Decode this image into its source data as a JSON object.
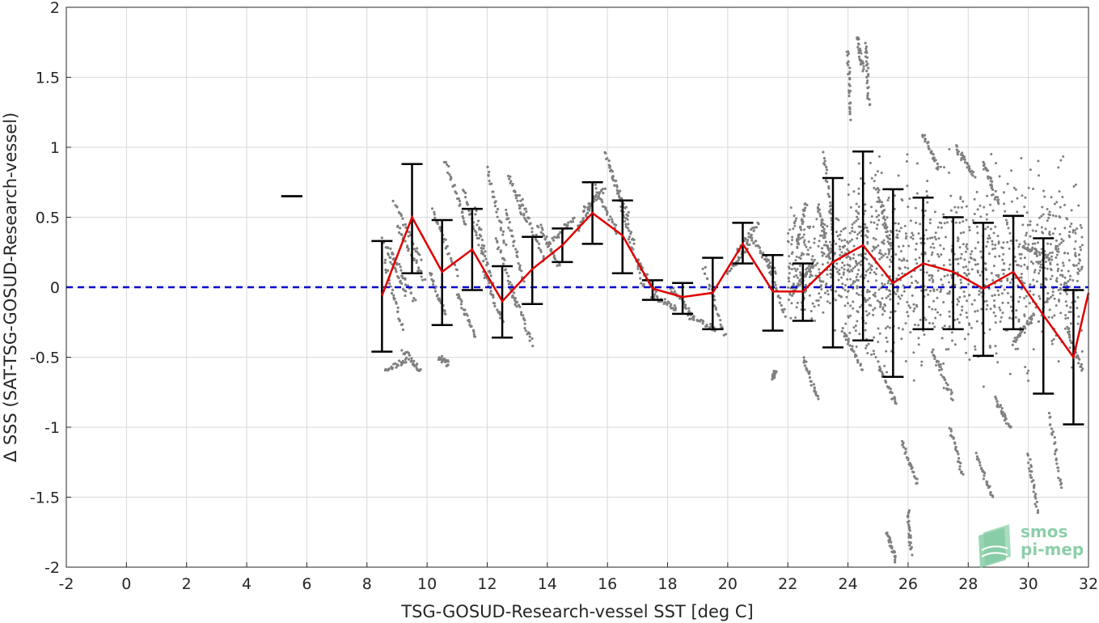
{
  "chart_data": {
    "type": "scatter",
    "xlabel": "TSG-GOSUD-Research-vessel SST [deg C]",
    "ylabel": "Δ SSS (SAT-TSG-GOSUD-Research-vessel)",
    "xlim": [
      -2,
      32
    ],
    "ylim": [
      -2,
      2
    ],
    "xticks": [
      "-2",
      "0",
      "2",
      "4",
      "6",
      "8",
      "10",
      "12",
      "14",
      "16",
      "18",
      "20",
      "22",
      "24",
      "26",
      "28",
      "30",
      "32"
    ],
    "yticks": [
      "-2",
      "-1.5",
      "-1",
      "-0.5",
      "0",
      "0.5",
      "1",
      "1.5",
      "2"
    ],
    "grid": true,
    "reference_line": {
      "y": 0,
      "style": "dashed",
      "color": "#0000cc"
    },
    "mean_line": {
      "color": "#e00000",
      "x": [
        8.5,
        9.5,
        10.5,
        11.5,
        12.5,
        13.5,
        14.5,
        15.5,
        16.5,
        17.5,
        18.5,
        19.5,
        20.5,
        21.5,
        22.5,
        23.5,
        24.5,
        25.5,
        26.5,
        27.5,
        28.5,
        29.5,
        30.5,
        31.5,
        32
      ],
      "y": [
        -0.06,
        0.5,
        0.11,
        0.27,
        -0.1,
        0.13,
        0.3,
        0.53,
        0.37,
        -0.01,
        -0.07,
        -0.04,
        0.31,
        -0.03,
        -0.03,
        0.18,
        0.3,
        0.03,
        0.17,
        0.11,
        -0.01,
        0.11,
        -0.2,
        -0.5,
        -0.04
      ]
    },
    "error_bars": {
      "color": "#000000",
      "x": [
        5.5,
        8.5,
        9.5,
        10.5,
        11.5,
        12.5,
        13.5,
        14.5,
        15.5,
        16.5,
        17.5,
        18.5,
        19.5,
        20.5,
        21.5,
        22.5,
        23.5,
        24.5,
        25.5,
        26.5,
        27.5,
        28.5,
        29.5,
        30.5,
        31.5
      ],
      "low": [
        0.65,
        -0.46,
        0.1,
        -0.27,
        -0.02,
        -0.36,
        -0.12,
        0.18,
        0.31,
        0.1,
        -0.09,
        -0.19,
        -0.3,
        0.17,
        -0.31,
        -0.24,
        -0.43,
        -0.38,
        -0.64,
        -0.3,
        -0.3,
        -0.49,
        -0.3,
        -0.76,
        -0.98
      ],
      "high": [
        0.65,
        0.33,
        0.88,
        0.48,
        0.56,
        0.15,
        0.36,
        0.42,
        0.75,
        0.62,
        0.05,
        0.03,
        0.21,
        0.46,
        0.23,
        0.17,
        0.78,
        0.97,
        0.7,
        0.64,
        0.5,
        0.46,
        0.51,
        0.35,
        -0.02
      ]
    },
    "scatter_color": "#808080",
    "scatter_segments": [
      [
        8.5,
        0.35,
        9.3,
        -0.05
      ],
      [
        8.7,
        0.3,
        9.6,
        -0.1
      ],
      [
        8.6,
        0.18,
        9.2,
        -0.3
      ],
      [
        8.9,
        0.6,
        9.8,
        0.2
      ],
      [
        9.0,
        0.45,
        9.9,
        0.05
      ],
      [
        8.6,
        -0.6,
        9.3,
        -0.52
      ],
      [
        9.2,
        -0.45,
        9.8,
        -0.6
      ],
      [
        10.1,
        0.1,
        10.6,
        -0.2
      ],
      [
        10.2,
        0.55,
        11.0,
        0.1
      ],
      [
        10.6,
        0.9,
        11.3,
        0.45
      ],
      [
        10.4,
        -0.5,
        10.7,
        -0.55
      ],
      [
        11.2,
        0.7,
        11.9,
        0.2
      ],
      [
        11.0,
        -0.05,
        11.6,
        -0.35
      ],
      [
        11.6,
        0.55,
        12.2,
        0.0
      ],
      [
        12.0,
        0.85,
        12.6,
        0.3
      ],
      [
        11.9,
        0.1,
        12.5,
        -0.25
      ],
      [
        12.3,
        0.35,
        13.0,
        -0.15
      ],
      [
        12.6,
        0.55,
        13.2,
        0.05
      ],
      [
        12.8,
        0.0,
        13.5,
        -0.4
      ],
      [
        12.7,
        0.8,
        13.3,
        0.45
      ],
      [
        13.1,
        0.65,
        13.9,
        0.2
      ],
      [
        13.7,
        0.45,
        14.4,
        0.15
      ],
      [
        14.0,
        0.3,
        14.9,
        0.5
      ],
      [
        15.0,
        0.4,
        15.6,
        0.65
      ],
      [
        15.2,
        0.55,
        15.9,
        0.7
      ],
      [
        15.6,
        0.72,
        16.3,
        0.4
      ],
      [
        15.9,
        0.96,
        16.7,
        0.5
      ],
      [
        16.1,
        0.85,
        16.9,
        0.3
      ],
      [
        16.4,
        0.6,
        17.2,
        0.0
      ],
      [
        17.0,
        0.2,
        17.6,
        -0.05
      ],
      [
        17.5,
        -0.06,
        18.3,
        -0.15
      ],
      [
        18.1,
        0.0,
        18.9,
        -0.22
      ],
      [
        18.7,
        -0.2,
        19.6,
        -0.3
      ],
      [
        19.2,
        0.15,
        19.9,
        -0.35
      ],
      [
        20.0,
        0.1,
        20.7,
        0.3
      ],
      [
        20.3,
        0.25,
        21.0,
        0.45
      ],
      [
        20.8,
        0.35,
        21.6,
        0.1
      ],
      [
        21.3,
        0.18,
        21.9,
        -0.2
      ],
      [
        21.6,
        -0.6,
        21.5,
        -0.65
      ],
      [
        22.1,
        -0.05,
        22.8,
        0.15
      ],
      [
        22.3,
        0.3,
        22.6,
        0.6
      ],
      [
        23.0,
        0.6,
        23.4,
        0.2
      ],
      [
        24.0,
        1.7,
        24.1,
        1.2
      ],
      [
        24.3,
        1.8,
        24.5,
        1.55
      ],
      [
        24.6,
        1.75,
        24.7,
        1.3
      ],
      [
        23.2,
        0.95,
        23.5,
        0.4
      ],
      [
        25.0,
        0.7,
        25.4,
        0.3
      ],
      [
        23.8,
        -0.3,
        24.5,
        -0.6
      ],
      [
        25.0,
        -0.55,
        25.6,
        -0.85
      ],
      [
        25.8,
        -1.1,
        26.3,
        -1.4
      ],
      [
        26.0,
        -1.6,
        26.1,
        -1.9
      ],
      [
        25.3,
        -1.75,
        25.6,
        -1.95
      ],
      [
        26.8,
        -0.45,
        27.5,
        -0.8
      ],
      [
        27.4,
        -1.0,
        27.8,
        -1.35
      ],
      [
        28.3,
        -1.2,
        28.8,
        -1.5
      ],
      [
        28.9,
        -0.8,
        29.4,
        -1.0
      ],
      [
        29.5,
        -0.4,
        30.2,
        -0.2
      ],
      [
        30.0,
        -1.2,
        30.3,
        -1.6
      ],
      [
        30.7,
        -0.9,
        31.1,
        -1.45
      ],
      [
        31.3,
        -0.3,
        31.8,
        -0.6
      ],
      [
        27.6,
        1.0,
        28.2,
        0.8
      ],
      [
        28.5,
        0.9,
        29.0,
        0.6
      ],
      [
        29.8,
        0.3,
        30.7,
        0.2
      ],
      [
        26.5,
        1.1,
        27.0,
        0.85
      ],
      [
        22.5,
        -0.5,
        23.0,
        -0.8
      ]
    ]
  }
}
